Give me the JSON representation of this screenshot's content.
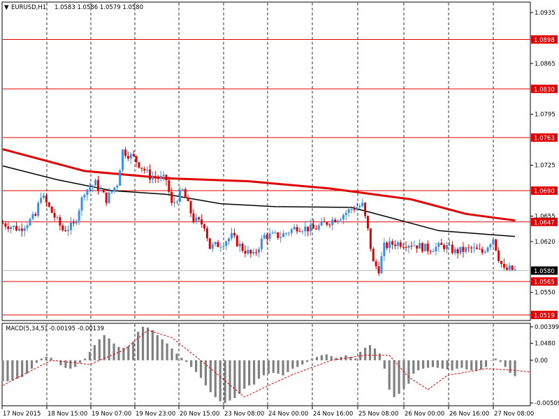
{
  "chart_data": [
    {
      "type": "candlestick",
      "header": {
        "symbol_tf": "EURUSD,H1",
        "ohlc": "1.0583 1.0586 1.0579 1.0580"
      },
      "price_ticks": [
        "1.0935",
        "1.0865",
        "1.0795",
        "1.0725",
        "1.0655",
        "1.0620",
        "1.0550",
        "1.0480"
      ],
      "levels": [
        {
          "label": "1.0898",
          "value": 1.0898
        },
        {
          "label": "1.0830",
          "value": 1.083
        },
        {
          "label": "1.0763",
          "value": 1.0763
        },
        {
          "label": "1.0690",
          "value": 1.069
        },
        {
          "label": "1.0647",
          "value": 1.0647
        },
        {
          "label": "1.0565",
          "value": 1.0565
        },
        {
          "label": "1.0519",
          "value": 1.0519
        }
      ],
      "current_price": "1.0580",
      "x_dates": [
        "17 Nov 2015",
        "18 Nov 15:00",
        "19 Nov 07:00",
        "19 Nov 23:00",
        "20 Nov 15:00",
        "23 Nov 08:00",
        "24 Nov 00:00",
        "24 Nov 16:00",
        "25 Nov 08:00",
        "26 Nov 00:00",
        "26 Nov 16:00",
        "27 Nov 08:00"
      ],
      "ma_red": [
        [
          0,
          1.0747
        ],
        [
          15,
          1.0717
        ],
        [
          30,
          1.0707
        ],
        [
          45,
          1.0703
        ],
        [
          60,
          1.0693
        ],
        [
          75,
          1.0678
        ],
        [
          85,
          1.0658
        ],
        [
          94,
          1.0649
        ]
      ],
      "ma_black": [
        [
          0,
          1.0724
        ],
        [
          10,
          1.0705
        ],
        [
          20,
          1.069
        ],
        [
          30,
          1.0685
        ],
        [
          40,
          1.0672
        ],
        [
          50,
          1.0668
        ],
        [
          64,
          1.0667
        ],
        [
          70,
          1.0655
        ],
        [
          80,
          1.0635
        ],
        [
          94,
          1.0627
        ]
      ],
      "price_path": [
        [
          0,
          1.0645
        ],
        [
          3,
          1.0637
        ],
        [
          6,
          1.0655
        ],
        [
          7,
          1.0685
        ],
        [
          9,
          1.066
        ],
        [
          11,
          1.0636
        ],
        [
          13,
          1.0642
        ],
        [
          15,
          1.069
        ],
        [
          17,
          1.07
        ],
        [
          19,
          1.0678
        ],
        [
          21,
          1.07
        ],
        [
          22,
          1.0745
        ],
        [
          24,
          1.0735
        ],
        [
          27,
          1.071
        ],
        [
          30,
          1.0705
        ],
        [
          31,
          1.067
        ],
        [
          33,
          1.069
        ],
        [
          35,
          1.065
        ],
        [
          37,
          1.0643
        ],
        [
          38,
          1.0612
        ],
        [
          40,
          1.0617
        ],
        [
          42,
          1.0627
        ],
        [
          44,
          1.061
        ],
        [
          46,
          1.06
        ],
        [
          48,
          1.0628
        ],
        [
          51,
          1.0628
        ],
        [
          54,
          1.064
        ],
        [
          57,
          1.0637
        ],
        [
          60,
          1.0648
        ],
        [
          62,
          1.0655
        ],
        [
          64,
          1.0665
        ],
        [
          66,
          1.067
        ],
        [
          67,
          1.0635
        ],
        [
          68,
          1.059
        ],
        [
          69,
          1.0582
        ],
        [
          70,
          1.0613
        ],
        [
          72,
          1.0618
        ],
        [
          75,
          1.0617
        ],
        [
          78,
          1.061
        ],
        [
          81,
          1.0614
        ],
        [
          83,
          1.0606
        ],
        [
          86,
          1.061
        ],
        [
          88,
          1.0605
        ],
        [
          90,
          1.0625
        ],
        [
          91,
          1.0598
        ],
        [
          92,
          1.058
        ],
        [
          93,
          1.0582
        ],
        [
          94,
          1.058
        ]
      ]
    },
    {
      "type": "bar",
      "indicator": "MACD(5,34,5) -0.00195 -0.00139",
      "ticks": [
        "0.00399",
        "0.00",
        "-0.00509"
      ],
      "ylim": [
        -0.00509,
        0.00399
      ],
      "histogram": [
        -0.0025,
        -0.0025,
        -0.0024,
        -0.0022,
        -0.002,
        -0.0016,
        -0.001,
        -0.0003,
        0.0002,
        0.0004,
        0.0003,
        0.0,
        -0.0006,
        -0.0009,
        -0.001,
        -0.0008,
        -0.0003,
        0.0002,
        0.001,
        0.0018,
        0.0025,
        0.003,
        0.0026,
        0.002,
        0.0016,
        0.0015,
        0.0017,
        0.0022,
        0.0034,
        0.004,
        0.0039,
        0.0036,
        0.003,
        0.0025,
        0.002,
        0.0014,
        0.0008,
        0.0003,
        -0.0002,
        -0.0008,
        -0.0014,
        -0.0021,
        -0.003,
        -0.0038,
        -0.0044,
        -0.0049,
        -0.0051,
        -0.0048,
        -0.0045,
        -0.004,
        -0.0034,
        -0.003,
        -0.0029,
        -0.0022,
        -0.0018,
        -0.0016,
        -0.0015,
        -0.0016,
        -0.0018,
        -0.0014,
        -0.001,
        -0.0008,
        -0.0005,
        -0.0002,
        0.0002,
        0.0004,
        0.0006,
        0.0007,
        0.0005,
        0.0003,
        0.0004,
        0.0006,
        0.0004,
        0.0002,
        0.001,
        0.0015,
        0.0018,
        0.0014,
        0.0008,
        -0.001,
        -0.0035,
        -0.0044,
        -0.004,
        -0.0034,
        -0.0028,
        -0.0016,
        -0.0012,
        -0.001,
        -0.0009,
        -0.0008,
        -0.0009,
        -0.001,
        -0.0011,
        -0.0012,
        -0.001,
        -0.0009,
        -0.0011,
        -0.0012,
        -0.0013,
        -0.0011,
        -0.0008,
        0.0,
        0.0002,
        -0.0002,
        -0.0008,
        -0.0015,
        -0.0019
      ],
      "signal": [
        [
          0,
          -0.003
        ],
        [
          10,
          0.0
        ],
        [
          18,
          -0.0005
        ],
        [
          25,
          0.0012
        ],
        [
          30,
          0.0036
        ],
        [
          35,
          0.0027
        ],
        [
          42,
          -0.0005
        ],
        [
          50,
          -0.0044
        ],
        [
          55,
          -0.003
        ],
        [
          60,
          -0.0017
        ],
        [
          68,
          0.0
        ],
        [
          75,
          0.0006
        ],
        [
          80,
          0.0006
        ],
        [
          84,
          -0.002
        ],
        [
          88,
          -0.0035
        ],
        [
          92,
          -0.0018
        ],
        [
          100,
          -0.001
        ],
        [
          106,
          -0.0012
        ],
        [
          109,
          -0.0014
        ]
      ]
    }
  ]
}
